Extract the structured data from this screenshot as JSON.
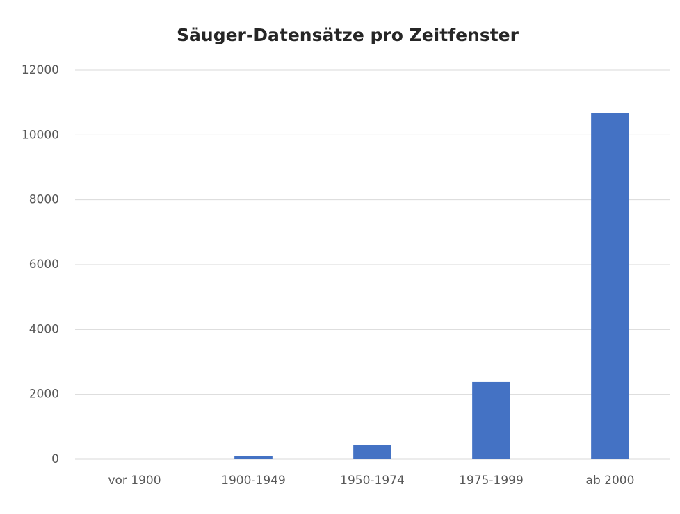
{
  "chart_data": {
    "type": "bar",
    "title": "Säuger-Datensätze pro Zeitfenster",
    "categories": [
      "vor 1900",
      "1900-1949",
      "1950-1974",
      "1975-1999",
      "ab 2000"
    ],
    "values": [
      0,
      105,
      430,
      2380,
      10680
    ],
    "color": "#4472c4",
    "ylim": [
      0,
      12000
    ],
    "yticks": [
      0,
      2000,
      4000,
      6000,
      8000,
      10000,
      12000
    ],
    "grid": true
  }
}
